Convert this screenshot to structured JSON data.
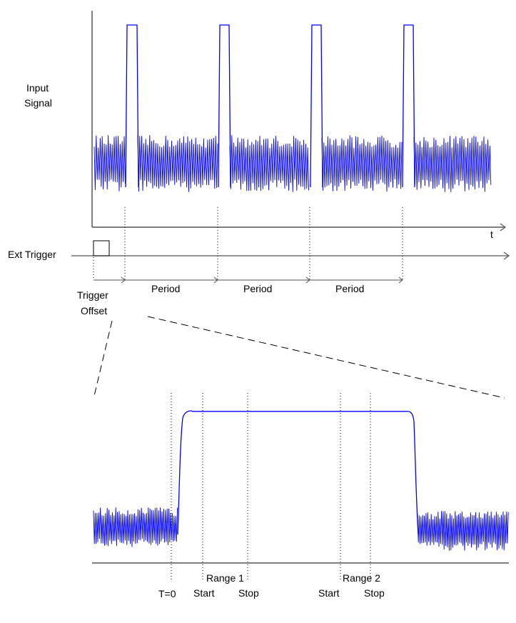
{
  "labels": {
    "input_signal_line1": "Input",
    "input_signal_line2": "Signal",
    "ext_trigger": "Ext Trigger",
    "t_axis": "t",
    "trigger_offset_line1": "Trigger",
    "trigger_offset_line2": "Offset",
    "period": "Period",
    "t_zero": "T=0",
    "range1": "Range 1",
    "range2": "Range 2",
    "start": "Start",
    "stop": "Stop"
  },
  "colors": {
    "signal": "#0000ff",
    "axis": "#555555",
    "guides": "#000000"
  },
  "signal": {
    "pulse_count": 4,
    "periods_shown": 3
  }
}
